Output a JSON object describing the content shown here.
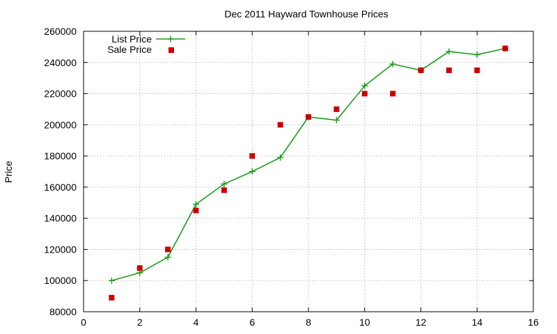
{
  "chart_data": {
    "type": "line",
    "title": "Dec 2011 Hayward Townhouse Prices",
    "xlabel": "",
    "ylabel": "Price",
    "xlim": [
      0,
      16
    ],
    "ylim": [
      80000,
      260000
    ],
    "x_ticks": [
      "0",
      "2",
      "4",
      "6",
      "8",
      "10",
      "12",
      "14",
      "16"
    ],
    "y_ticks": [
      "80000",
      "100000",
      "120000",
      "140000",
      "160000",
      "180000",
      "200000",
      "220000",
      "240000",
      "260000"
    ],
    "grid": true,
    "legend_position": "top-left",
    "series": [
      {
        "name": "List Price",
        "style": "line-with-plus-markers",
        "color": "#1a9c1a",
        "x": [
          1,
          2,
          3,
          4,
          5,
          6,
          7,
          8,
          9,
          10,
          11,
          12,
          13,
          14,
          15
        ],
        "y": [
          100000,
          105000,
          115000,
          149000,
          162000,
          170000,
          179000,
          205000,
          203000,
          225000,
          239000,
          235000,
          247000,
          245000,
          249000
        ]
      },
      {
        "name": "Sale Price",
        "style": "square-markers",
        "color": "#cc0000",
        "x": [
          1,
          2,
          3,
          4,
          5,
          6,
          7,
          8,
          9,
          10,
          11,
          12,
          13,
          14,
          15
        ],
        "y": [
          89000,
          108000,
          120000,
          145000,
          158000,
          180000,
          200000,
          205000,
          210000,
          220000,
          220000,
          235000,
          235000,
          235000,
          249000
        ]
      }
    ]
  }
}
